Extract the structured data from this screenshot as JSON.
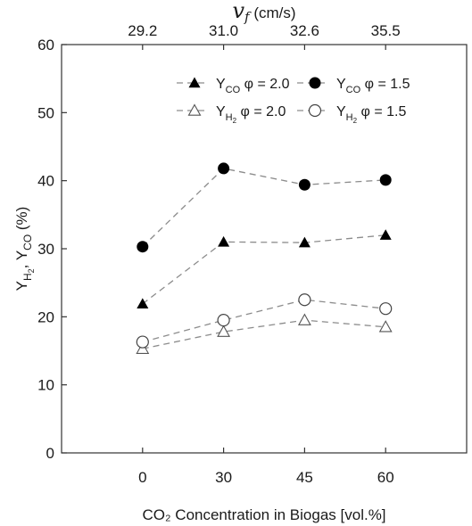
{
  "chart_data": {
    "type": "line",
    "x_positions": [
      0,
      1,
      2,
      3
    ],
    "categories": [
      "0",
      "30",
      "45",
      "60"
    ],
    "xlabel": "CO₂ Concentration in Biogas [vol.%]",
    "ylabel": "Yₕ₂, Yᶜᵒ (%)",
    "ylabel_parts": {
      "y": "Y",
      "h2_sub": "H",
      "h2_sub2": "2",
      "sep": ", Y",
      "co_sub": "CO",
      "unit": " (%)"
    },
    "ylim": [
      0,
      60
    ],
    "yticks": [
      0,
      10,
      20,
      30,
      40,
      50,
      60
    ],
    "xlim": [
      -1,
      4
    ],
    "top_axis": {
      "symbol": "v",
      "subscript": "f",
      "unit": " (cm/s)",
      "tick_labels": [
        "29.2",
        "31.0",
        "32.6",
        "35.5"
      ]
    },
    "grid": false,
    "legend_position": "top-right",
    "series": [
      {
        "name": "Y_CO φ = 2.0",
        "label_main": "Y",
        "label_sub": "CO",
        "label_tail": " φ = 2.0",
        "marker": "triangle-filled",
        "values": [
          21.9,
          31.0,
          30.9,
          32.0
        ]
      },
      {
        "name": "Y_CO φ = 1.5",
        "label_main": "Y",
        "label_sub": "CO",
        "label_tail": " φ = 1.5",
        "marker": "circle-filled",
        "values": [
          30.3,
          41.8,
          39.4,
          40.1
        ]
      },
      {
        "name": "Y_H2 φ = 2.0",
        "label_main": "Y",
        "label_sub": "H2",
        "label_tail": " φ = 2.0",
        "marker": "triangle-open",
        "values": [
          15.3,
          17.8,
          19.5,
          18.5
        ]
      },
      {
        "name": "Y_H2 φ = 1.5",
        "label_main": "Y",
        "label_sub": "H2",
        "label_tail": " φ = 1.5",
        "marker": "circle-open",
        "values": [
          16.3,
          19.5,
          22.5,
          21.2
        ]
      }
    ],
    "colors": {
      "marker": "#000000",
      "line": "#8c8c8c",
      "frame": "#333333"
    }
  }
}
